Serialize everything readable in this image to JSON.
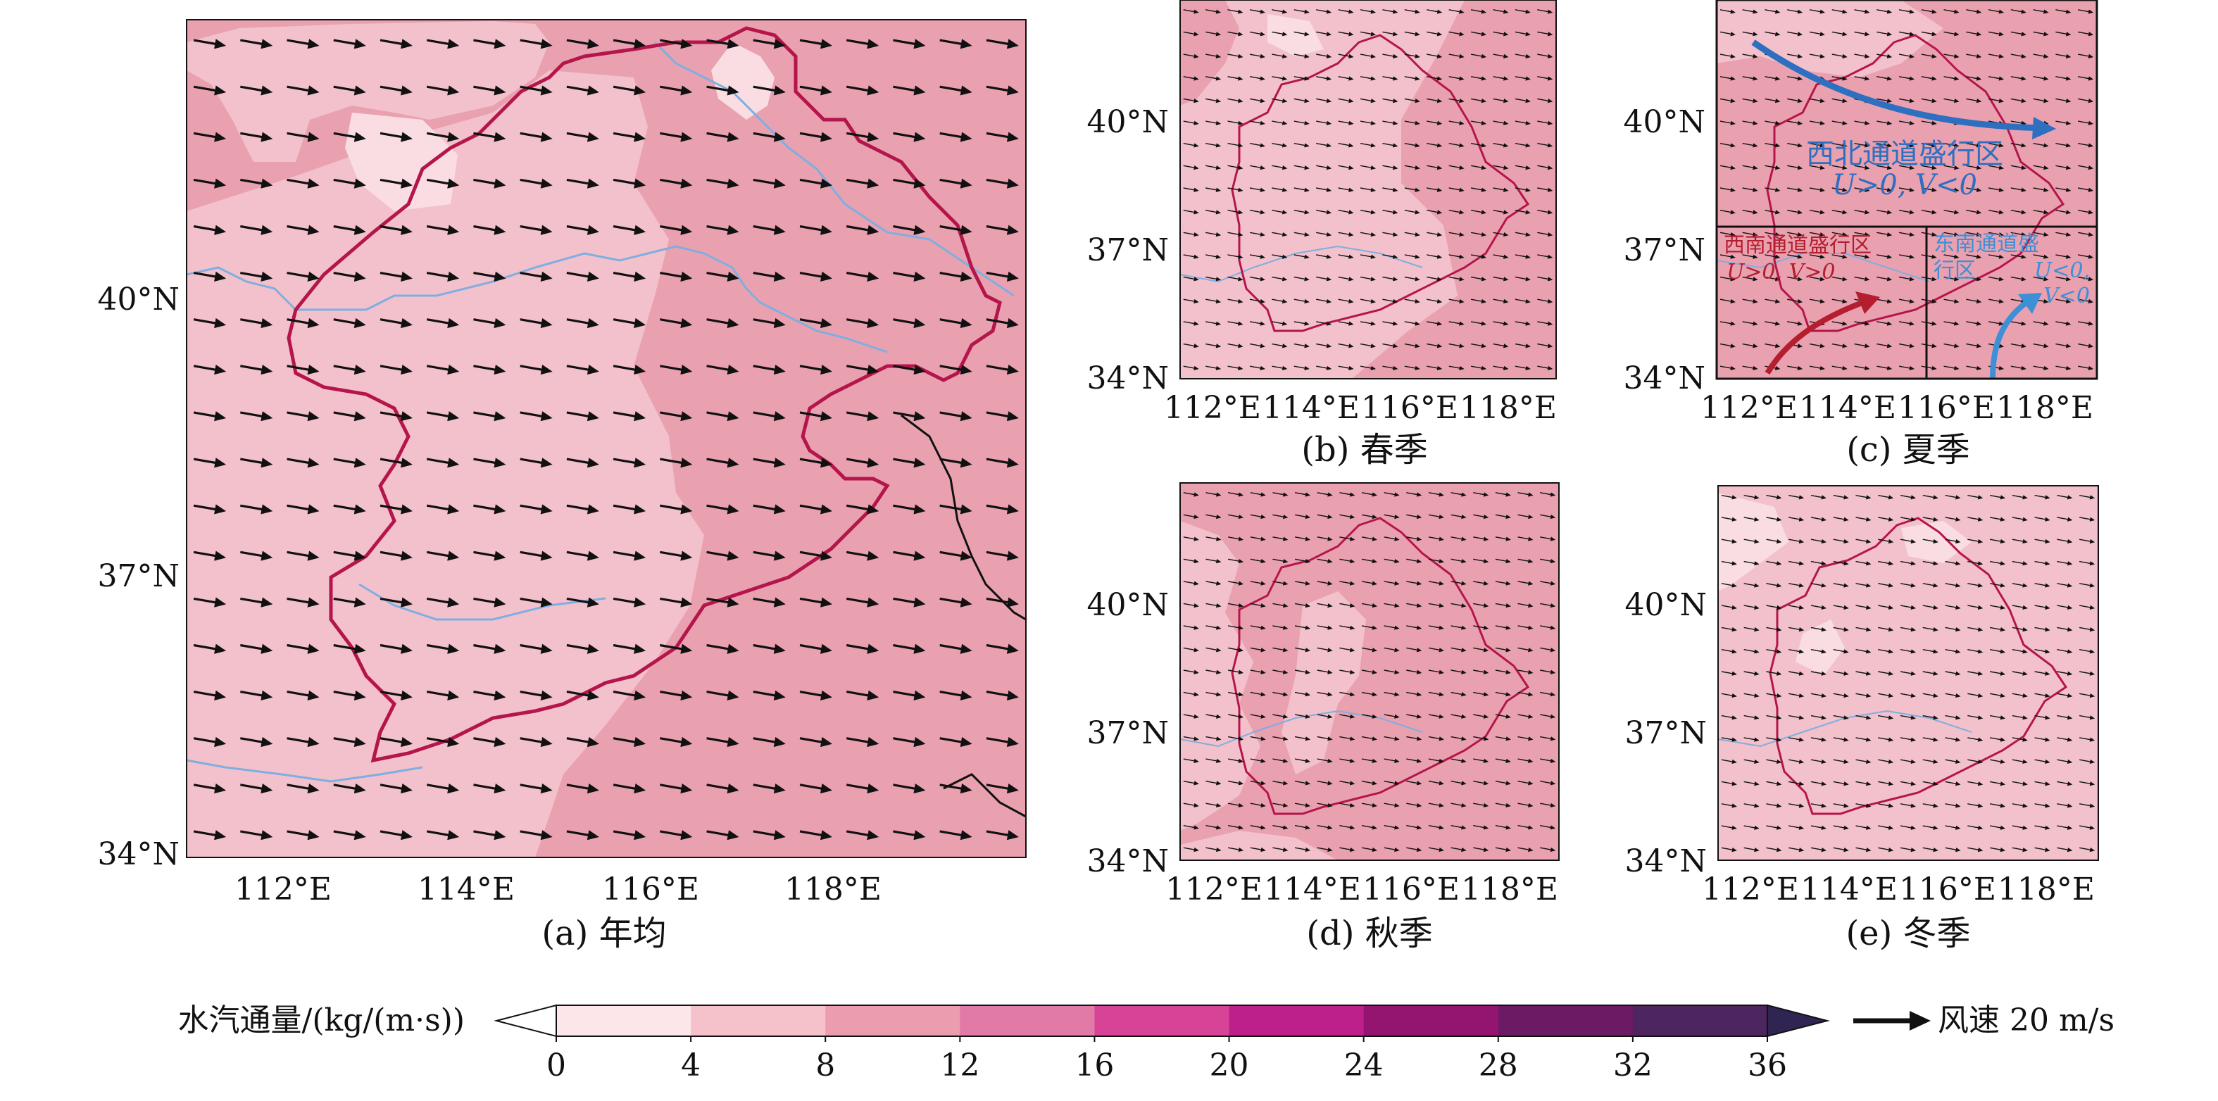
{
  "colors": {
    "border": "#b4154b",
    "river": "#7faee0",
    "coast": "#111111",
    "arrow": "#111111",
    "fill_0_4": "#f9dde3",
    "fill_4_8": "#f3c1cb",
    "fill_8_12": "#e9a1b0",
    "nw_channel": "#2e6fc0",
    "sw_channel": "#b41e2e",
    "se_channel": "#3d8fd6"
  },
  "panels": {
    "a": {
      "caption": "(a) 年均",
      "lat_labels": [
        "40°N",
        "37°N",
        "34°N"
      ],
      "lon_labels": [
        "112°E",
        "114°E",
        "116°E",
        "118°E"
      ]
    },
    "b": {
      "caption": "(b) 春季",
      "lat_labels": [
        "40°N",
        "37°N",
        "34°N"
      ],
      "lon_labels": [
        "112°E",
        "114°E",
        "116°E",
        "118°E"
      ]
    },
    "c": {
      "caption": "(c) 夏季",
      "lat_labels": [
        "40°N",
        "37°N",
        "34°N"
      ],
      "lon_labels": [
        "112°E",
        "114°E",
        "116°E",
        "118°E"
      ],
      "nw_region": {
        "title": "西北通道盛行区",
        "cond": "U>0, V<0"
      },
      "sw_region": {
        "title": "西南通道盛行区",
        "cond": "U>0, V>0"
      },
      "se_region": {
        "title_1": "东南通道盛",
        "title_2": "行区",
        "cond_1": "U<0,",
        "cond_2": "V<0"
      }
    },
    "d": {
      "caption": "(d) 秋季",
      "lat_labels": [
        "40°N",
        "37°N",
        "34°N"
      ],
      "lon_labels": [
        "112°E",
        "114°E",
        "116°E",
        "118°E"
      ]
    },
    "e": {
      "caption": "(e) 冬季",
      "lat_labels": [
        "40°N",
        "37°N",
        "34°N"
      ],
      "lon_labels": [
        "112°E",
        "114°E",
        "116°E",
        "118°E"
      ]
    }
  },
  "colorbar": {
    "label": "水汽通量/(kg/(m·s))",
    "ticks": [
      "0",
      "4",
      "8",
      "12",
      "16",
      "20",
      "24",
      "28",
      "32",
      "36"
    ],
    "colors": [
      "#fde6ea",
      "#f5c1cb",
      "#ec9caf",
      "#e27aa8",
      "#d74396",
      "#bd1f8b",
      "#94156f",
      "#6b1a63",
      "#4d2660"
    ],
    "under_color": "#ffffff",
    "over_color": "#2f2452"
  },
  "wind_legend": {
    "label": "风速 20 m/s"
  }
}
